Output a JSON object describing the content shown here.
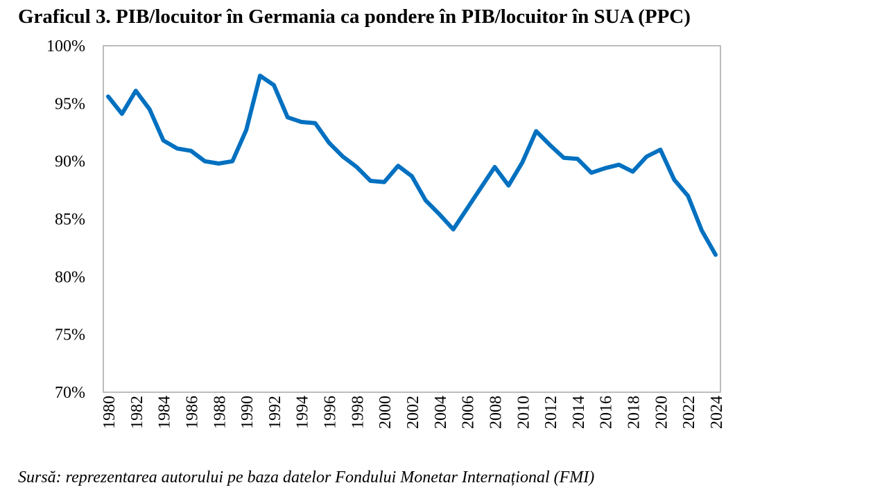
{
  "figure": {
    "title": "Graficul 3. PIB/locuitor în Germania ca pondere în PIB/locuitor în SUA (PPC)",
    "source": "Sursă: reprezentarea autorului pe baza datelor Fondului Monetar Internațional (FMI)"
  },
  "chart_data": {
    "type": "line",
    "title": "Graficul 3. PIB/locuitor în Germania ca pondere în PIB/locuitor în SUA (PPC)",
    "xlabel": "",
    "ylabel": "",
    "ylim": [
      70,
      100
    ],
    "yticks": [
      70,
      75,
      80,
      85,
      90,
      95,
      100
    ],
    "ytick_labels": [
      "70%",
      "75%",
      "80%",
      "85%",
      "90%",
      "95%",
      "100%"
    ],
    "xlim": [
      1980,
      2024
    ],
    "xtick_labels": [
      "1980",
      "1982",
      "1984",
      "1986",
      "1988",
      "1990",
      "1992",
      "1994",
      "1996",
      "1998",
      "2000",
      "2002",
      "2004",
      "2006",
      "2008",
      "2010",
      "2012",
      "2014",
      "2016",
      "2018",
      "2020",
      "2022",
      "2024"
    ],
    "grid": false,
    "legend": "none",
    "line_color": "#0070C0",
    "x": [
      1980,
      1981,
      1982,
      1983,
      1984,
      1985,
      1986,
      1987,
      1988,
      1989,
      1990,
      1991,
      1992,
      1993,
      1994,
      1995,
      1996,
      1997,
      1998,
      1999,
      2000,
      2001,
      2002,
      2003,
      2004,
      2005,
      2006,
      2007,
      2008,
      2009,
      2010,
      2011,
      2012,
      2013,
      2014,
      2015,
      2016,
      2017,
      2018,
      2019,
      2020,
      2021,
      2022,
      2023,
      2024
    ],
    "series": [
      {
        "values": [
          95.6,
          94.1,
          96.1,
          94.5,
          91.8,
          91.1,
          90.9,
          90.0,
          89.8,
          90.0,
          92.7,
          97.4,
          96.6,
          93.8,
          93.4,
          93.3,
          91.6,
          90.4,
          89.5,
          88.3,
          88.2,
          89.6,
          88.7,
          86.6,
          85.4,
          84.1,
          85.9,
          87.7,
          89.5,
          87.9,
          89.9,
          92.6,
          91.4,
          90.3,
          90.2,
          89.0,
          89.4,
          89.7,
          89.1,
          90.4,
          91.0,
          88.4,
          87.0,
          84.0,
          81.9
        ]
      }
    ]
  }
}
